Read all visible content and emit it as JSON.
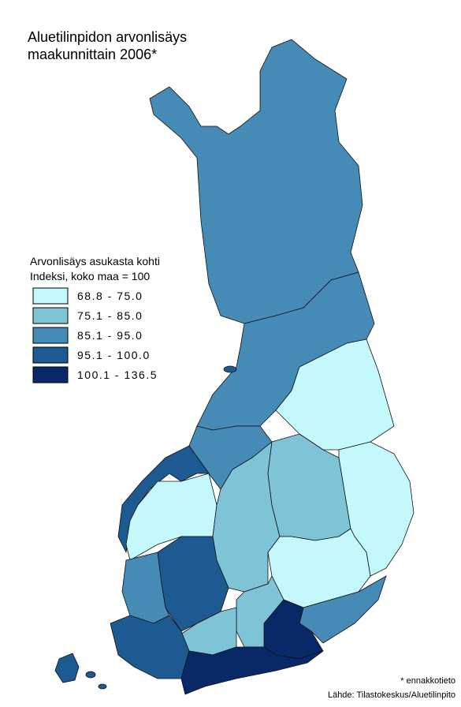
{
  "header": {
    "title_lines": [
      "Aluetilinpidon arvonlisäys",
      "maakunnittain 2006*"
    ]
  },
  "legend": {
    "title_lines": [
      "Arvonlisäys asukasta kohti",
      "Indeksi, koko maa = 100"
    ],
    "items": [
      {
        "label": "68.8 - 75.0",
        "color": "#c4f8fa"
      },
      {
        "label": "75.1 - 85.0",
        "color": "#7fc3d7"
      },
      {
        "label": "85.1 - 95.0",
        "color": "#468ab6"
      },
      {
        "label": "95.1 - 100.0",
        "color": "#1e5a92"
      },
      {
        "label": "100.1 - 136.5",
        "color": "#082868"
      }
    ]
  },
  "footnotes": [
    "* ennakkotieto",
    "Lähde: Tilastokeskus/Aluetilinpito"
  ]
}
